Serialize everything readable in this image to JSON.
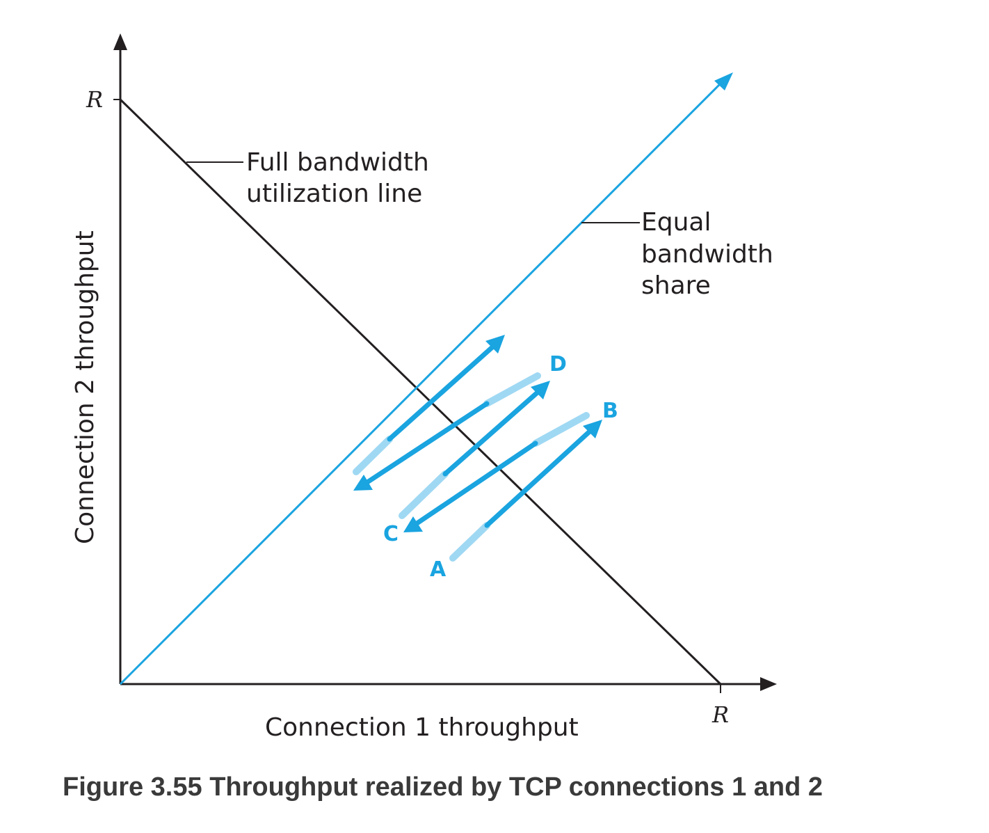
{
  "diagram": {
    "axis_x_label": "Connection 1 throughput",
    "axis_y_label": "Connection 2 throughput",
    "axis_x_max_label": "R",
    "axis_y_max_label": "R",
    "full_bandwidth_label": [
      "Full bandwidth",
      "utilization line"
    ],
    "equal_share_label": [
      "Equal",
      "bandwidth",
      "share"
    ],
    "points": {
      "A": "A",
      "B": "B",
      "C": "C",
      "D": "D"
    },
    "colors": {
      "blue": "#1aa4e0",
      "light_blue": "#9fd8f3",
      "black": "#231f20"
    }
  },
  "caption": "Figure 3.55 Throughput realized by TCP connections 1 and 2"
}
